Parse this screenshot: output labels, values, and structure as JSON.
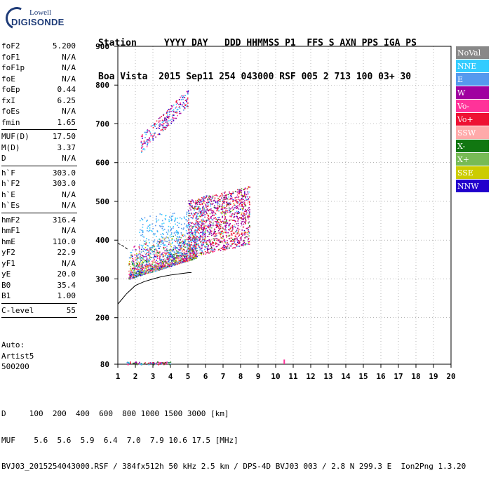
{
  "logo": {
    "line1": "Lowell",
    "line2": "DIGISONDE"
  },
  "header": {
    "line1": "Station     YYYY DAY   DDD HHMMSS P1  FFS S AXN PPS IGA PS",
    "line2": "Boa Vista  2015 Sep11 254 043000 RSF 005 2 713 100 03+ 30"
  },
  "params": {
    "g1": [
      [
        "foF2",
        "5.200"
      ],
      [
        "foF1",
        "N/A"
      ],
      [
        "foF1p",
        "N/A"
      ],
      [
        "foE",
        "N/A"
      ],
      [
        "foEp",
        "0.44"
      ],
      [
        "fxI",
        "6.25"
      ],
      [
        "foEs",
        "N/A"
      ],
      [
        "fmin",
        "1.65"
      ]
    ],
    "g2": [
      [
        "MUF(D)",
        "17.50"
      ],
      [
        "M(D)",
        "3.37"
      ],
      [
        "D",
        "N/A"
      ]
    ],
    "g3": [
      [
        "h`F",
        "303.0"
      ],
      [
        "h`F2",
        "303.0"
      ],
      [
        "h`E",
        "N/A"
      ],
      [
        "h`Es",
        "N/A"
      ]
    ],
    "g4": [
      [
        "hmF2",
        "316.4"
      ],
      [
        "hmF1",
        "N/A"
      ],
      [
        "hmE",
        "110.0"
      ],
      [
        "yF2",
        "22.9"
      ],
      [
        "yF1",
        "N/A"
      ],
      [
        "yE",
        "20.0"
      ],
      [
        "B0",
        "35.4"
      ],
      [
        "B1",
        "1.00"
      ]
    ],
    "g5": [
      [
        "C-level",
        "55"
      ]
    ]
  },
  "auto": {
    "l1": "Auto:",
    "l2": "Artist5",
    "l3": "500200"
  },
  "legend": [
    {
      "label": "NoVal",
      "color": "#888888"
    },
    {
      "label": "NNE",
      "color": "#33ccff"
    },
    {
      "label": "E",
      "color": "#5599ee"
    },
    {
      "label": "W",
      "color": "#a000a0"
    },
    {
      "label": "Vo-",
      "color": "#ff3399"
    },
    {
      "label": "Vo+",
      "color": "#ee1133"
    },
    {
      "label": "SSW",
      "color": "#ffaaaa"
    },
    {
      "label": "X-",
      "color": "#117711"
    },
    {
      "label": "X+",
      "color": "#77bb55"
    },
    {
      "label": "SSE",
      "color": "#cccc00"
    },
    {
      "label": "NNW",
      "color": "#2200cc"
    }
  ],
  "footer": {
    "l1": "D     100  200  400  600  800 1000 1500 3000 [km]",
    "l2": "MUF    5.6  5.6  5.9  6.4  7.0  7.9 10.6 17.5 [MHz]",
    "l3": "BVJ03_2015254043000.RSF / 384fx512h 50 kHz 2.5 km / DPS-4D BVJ03 003 / 2.8 N 299.3 E  Ion2Png 1.3.20"
  },
  "chart_data": {
    "type": "scatter",
    "xlim": [
      1,
      20
    ],
    "ylim": [
      80,
      900
    ],
    "x_ticks": [
      1,
      2,
      3,
      4,
      5,
      6,
      7,
      8,
      9,
      10,
      11,
      12,
      13,
      14,
      15,
      16,
      17,
      18,
      19,
      20
    ],
    "y_ticks": [
      80,
      200,
      300,
      400,
      500,
      600,
      700,
      800,
      900
    ],
    "grid": true,
    "legend_position": "right",
    "point_clusters": [
      {
        "name": "F-trace low",
        "x_range": [
          1.6,
          5.5
        ],
        "y_range": [
          300,
          400
        ]
      },
      {
        "name": "F-trace high",
        "x_range": [
          5.0,
          8.5
        ],
        "y_range": [
          340,
          520
        ]
      },
      {
        "name": "2F multiple",
        "x_range": [
          2.3,
          5.0
        ],
        "y_range": [
          620,
          830
        ]
      },
      {
        "name": "E-region",
        "x_range": [
          1.5,
          4.0
        ],
        "y_range": [
          80,
          90
        ]
      }
    ],
    "profile_curve": [
      [
        1.0,
        235
      ],
      [
        1.5,
        262
      ],
      [
        2.0,
        283
      ],
      [
        2.5,
        293
      ],
      [
        3.0,
        300
      ],
      [
        3.5,
        306
      ],
      [
        4.0,
        310
      ],
      [
        4.5,
        313
      ],
      [
        5.0,
        316
      ],
      [
        5.2,
        316.4
      ]
    ],
    "profile_curve_upper": [
      [
        1.0,
        392
      ],
      [
        1.3,
        385
      ],
      [
        1.6,
        375
      ]
    ]
  }
}
